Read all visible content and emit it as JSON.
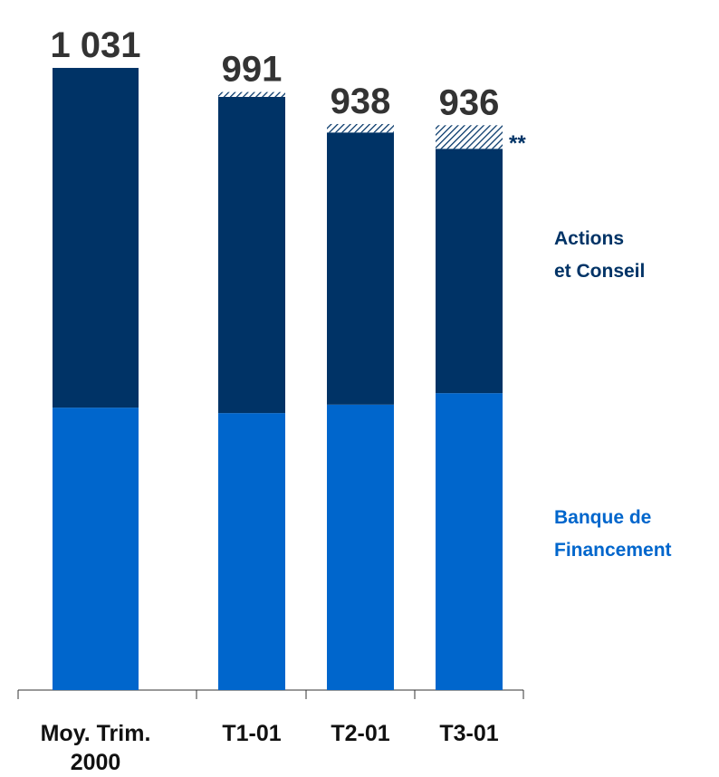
{
  "chart_data": {
    "type": "stacked_bar",
    "categories": [
      "Moy. Trim.\n2000",
      "T1-01",
      "T2-01",
      "T3-01"
    ],
    "series": [
      {
        "name": "Banque de\nFinancement",
        "color": "#0066cc",
        "values": [
          468,
          459,
          473,
          492
        ]
      },
      {
        "name": "Actions\net Conseil",
        "color": "#003366",
        "values": [
          563,
          524,
          451,
          405
        ]
      },
      {
        "name": "**",
        "color": "#003366",
        "pattern": "hatch",
        "values": [
          0,
          8,
          14,
          39
        ]
      }
    ],
    "totals": [
      1031,
      991,
      938,
      936
    ],
    "total_labels": [
      "1 031",
      "991",
      "938",
      "936"
    ],
    "ylim": [
      0,
      1100
    ]
  }
}
